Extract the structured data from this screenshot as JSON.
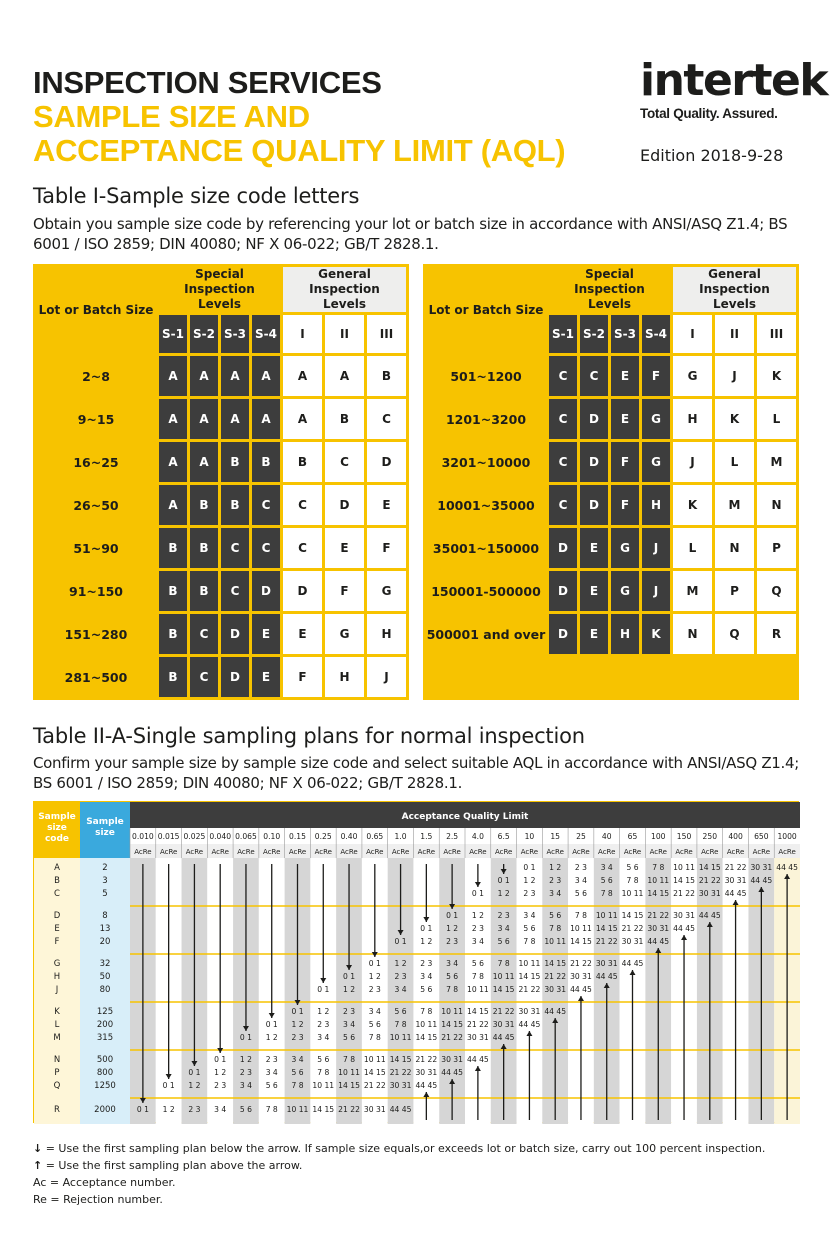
{
  "header": {
    "line1": "INSPECTION SERVICES",
    "line2": "SAMPLE SIZE AND",
    "line3": "ACCEPTANCE QUALITY LIMIT (AQL)",
    "edition": "Edition 2018-9-28"
  },
  "logo": {
    "word": "intertek",
    "tagline": "Total Quality. Assured."
  },
  "colors": {
    "yellow": "#f7c300",
    "dark": "#3d3d3d",
    "grey": "#d9d9d9",
    "blue": "#3aa9dd"
  },
  "table1": {
    "title": "Table I-Sample size code letters",
    "desc": "Obtain you sample size code by referencing your lot or batch size in accordance with ANSI/ASQ Z1.4; BS 6001 / ISO 2859; DIN 40080; NF X 06-022; GB/T 2828.1.",
    "h_lot": "Lot or Batch Size",
    "h_special": "Special Inspection Levels",
    "h_general": "General Inspection Levels",
    "levels": [
      "S-1",
      "S-2",
      "S-3",
      "S-4",
      "I",
      "II",
      "III"
    ],
    "left": [
      {
        "lot": "2~8",
        "codes": [
          "A",
          "A",
          "A",
          "A",
          "A",
          "A",
          "B"
        ]
      },
      {
        "lot": "9~15",
        "codes": [
          "A",
          "A",
          "A",
          "A",
          "A",
          "B",
          "C"
        ]
      },
      {
        "lot": "16~25",
        "codes": [
          "A",
          "A",
          "B",
          "B",
          "B",
          "C",
          "D"
        ]
      },
      {
        "lot": "26~50",
        "codes": [
          "A",
          "B",
          "B",
          "C",
          "C",
          "D",
          "E"
        ]
      },
      {
        "lot": "51~90",
        "codes": [
          "B",
          "B",
          "C",
          "C",
          "C",
          "E",
          "F"
        ]
      },
      {
        "lot": "91~150",
        "codes": [
          "B",
          "B",
          "C",
          "D",
          "D",
          "F",
          "G"
        ]
      },
      {
        "lot": "151~280",
        "codes": [
          "B",
          "C",
          "D",
          "E",
          "E",
          "G",
          "H"
        ]
      },
      {
        "lot": "281~500",
        "codes": [
          "B",
          "C",
          "D",
          "E",
          "F",
          "H",
          "J"
        ]
      }
    ],
    "right": [
      {
        "lot": "501~1200",
        "codes": [
          "C",
          "C",
          "E",
          "F",
          "G",
          "J",
          "K"
        ]
      },
      {
        "lot": "1201~3200",
        "codes": [
          "C",
          "D",
          "E",
          "G",
          "H",
          "K",
          "L"
        ]
      },
      {
        "lot": "3201~10000",
        "codes": [
          "C",
          "D",
          "F",
          "G",
          "J",
          "L",
          "M"
        ]
      },
      {
        "lot": "10001~35000",
        "codes": [
          "C",
          "D",
          "F",
          "H",
          "K",
          "M",
          "N"
        ]
      },
      {
        "lot": "35001~150000",
        "codes": [
          "D",
          "E",
          "G",
          "J",
          "L",
          "N",
          "P"
        ]
      },
      {
        "lot": "150001-500000",
        "codes": [
          "D",
          "E",
          "G",
          "J",
          "M",
          "P",
          "Q"
        ]
      },
      {
        "lot": "500001 and over",
        "codes": [
          "D",
          "E",
          "H",
          "K",
          "N",
          "Q",
          "R"
        ]
      }
    ]
  },
  "table2": {
    "title": "Table II-A-Single sampling plans for normal inspection",
    "desc": "Confirm your sample size by sample size code and select suitable AQL in accordance with ANSI/ASQ Z1.4; BS 6001 / ISO 2859; DIN 40080; NF X 06-022; GB/T 2828.1.",
    "h_code": "Sample size code",
    "h_size": "Sample size",
    "h_aql": "Acceptance Quality Limit",
    "acre": "AcRe",
    "aql": [
      "0.010",
      "0.015",
      "0.025",
      "0.040",
      "0.065",
      "0.10",
      "0.15",
      "0.25",
      "0.40",
      "0.65",
      "1.0",
      "1.5",
      "2.5",
      "4.0",
      "6.5",
      "10",
      "15",
      "25",
      "40",
      "65",
      "100",
      "150",
      "250",
      "400",
      "650",
      "1000"
    ],
    "codes": [
      "A",
      "B",
      "C",
      "D",
      "E",
      "F",
      "G",
      "H",
      "J",
      "K",
      "L",
      "M",
      "N",
      "P",
      "Q",
      "R"
    ],
    "sizes": [
      "2",
      "3",
      "5",
      "8",
      "13",
      "20",
      "32",
      "50",
      "80",
      "125",
      "200",
      "315",
      "500",
      "800",
      "1250",
      "2000"
    ]
  },
  "legend": {
    "down": "= Use the first sampling plan below the arrow. If sample size equals,or exceeds lot or batch size, carry out 100 percent inspection.",
    "up": "= Use the first sampling plan above the arrow.",
    "ac": "Ac = Acceptance number.",
    "re": "Re = Rejection number.",
    "down_icon": "down-arrow-icon",
    "up_icon": "up-arrow-icon"
  }
}
